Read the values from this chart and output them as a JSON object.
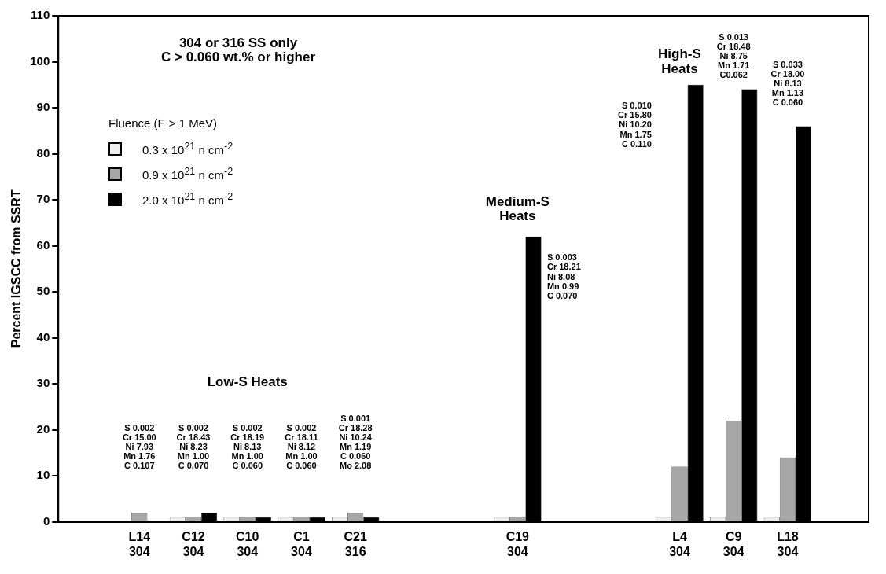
{
  "chart_data": {
    "type": "bar",
    "ylabel": "Percent IGSCC from SSRT",
    "legend_title": "Fluence (E > 1 MeV)",
    "legend": "top left",
    "grid": false,
    "categories": [
      null,
      "L14\n304",
      "C12\n304",
      "C10\n304",
      "C1\n304",
      "C21\n316",
      null,
      null,
      "C19\n304",
      null,
      null,
      "L4\n304",
      "C9\n304",
      "L18\n304",
      null
    ],
    "series": [
      {
        "name": "0.3 x 10$^{21}$ n cm$^{-2}$",
        "color": "#eeeeee",
        "values": [
          null,
          null,
          1,
          1,
          1,
          1,
          null,
          null,
          1,
          null,
          null,
          1,
          1,
          1,
          null
        ]
      },
      {
        "name": "0.9 x 10$^{21}$ n cm$^{-2}$",
        "color": "#a6a6a6",
        "values": [
          null,
          2,
          1,
          1,
          1,
          2,
          null,
          null,
          1,
          null,
          null,
          12,
          22,
          14,
          null
        ]
      },
      {
        "name": "2.0 x 10$^{21}$ n cm$^{-2}$",
        "color": "#000000",
        "values": [
          null,
          null,
          2,
          1,
          1,
          1,
          null,
          null,
          62,
          null,
          null,
          95,
          94,
          86,
          null
        ]
      }
    ],
    "ylim": [
      0,
      110
    ],
    "yticks": [
      0,
      10,
      20,
      30,
      40,
      50,
      60,
      70,
      80,
      90,
      100,
      110
    ],
    "annotations": [
      "304 or 316 SS only\nC > 0.060 wt.% or higher",
      "S 0.002\nCr 15.00\nNi 7.93\nMn 1.76\nC 0.107",
      "S 0.002\nCr 18.43\nNi 8.23\nMn 1.00\nC 0.070",
      "S 0.002\nCr 18.19\nNi 8.13\nMn 1.00\nC 0.060",
      "S 0.002\nCr 18.11\nNi 8.12\nMn 1.00\nC 0.060",
      "S 0.001\nCr 18.28\nNi 10.24\nMn 1.19\nC 0.060\nMo 2.08",
      "S 0.003\nCr 18.21\nNi 8.08\nMn 0.99\nC 0.070",
      "S 0.010\nCr 15.80\nNi 10.20\nMn 1.75\nC 0.110",
      "S 0.013\nCr 18.48\nNi 8.75\nMn 1.71\nC0.062",
      "S 0.033\nCr 18.00\nNi 8.13\nMn 1.13\nC 0.060",
      "Low-S Heats",
      "Medium-S\nHeats",
      "High-S\nHeats"
    ]
  }
}
